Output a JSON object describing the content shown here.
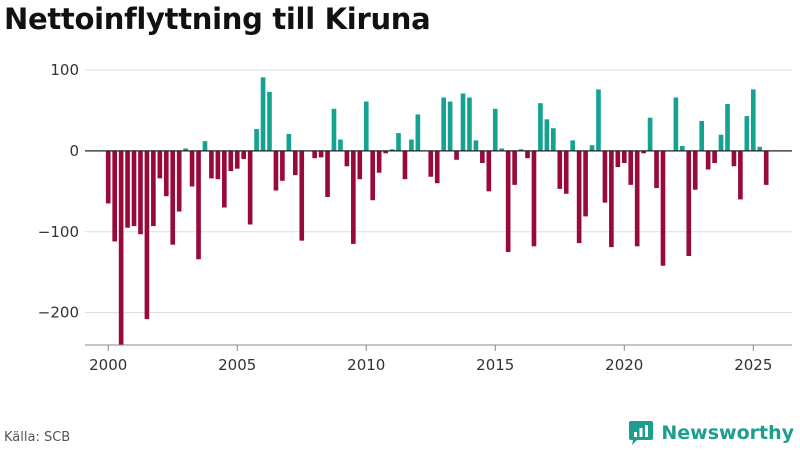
{
  "header": {
    "title": "Nettoinflyttning till Kiruna"
  },
  "footer": {
    "source": "Källa: SCB",
    "brand": "Newsworthy"
  },
  "colors": {
    "positive": "#14a393",
    "negative": "#990a3c",
    "grid": "#dddddd",
    "zero": "#222222",
    "brand": "#1e9e8e"
  },
  "chart_data": {
    "type": "bar",
    "title": "Nettoinflyttning till Kiruna",
    "xlabel": "",
    "ylabel": "",
    "frequency": "quarterly",
    "start": "2000-Q1",
    "ylim": [
      -240,
      100
    ],
    "xlim": [
      1999.1,
      2026.5
    ],
    "yticks": [
      100,
      0,
      -100,
      -200
    ],
    "ytick_labels": [
      "100",
      "0",
      "−100",
      "−200"
    ],
    "xticks": [
      2000,
      2005,
      2010,
      2015,
      2020,
      2025
    ],
    "xtick_labels": [
      "2000",
      "2005",
      "2010",
      "2015",
      "2020",
      "2025"
    ],
    "grid": true,
    "values": [
      -65,
      -112,
      -240,
      -95,
      -93,
      -103,
      -208,
      -93,
      -34,
      -56,
      -116,
      -75,
      3,
      -44,
      -134,
      12,
      -34,
      -35,
      -70,
      -25,
      -22,
      -10,
      -91,
      27,
      91,
      73,
      -49,
      -37,
      21,
      -30,
      -111,
      0,
      -9,
      -8,
      -57,
      52,
      14,
      -19,
      -115,
      -35,
      61,
      -61,
      -27,
      -3,
      2,
      22,
      -35,
      14,
      45,
      0,
      -32,
      -40,
      66,
      61,
      -11,
      71,
      66,
      13,
      -15,
      -50,
      52,
      3,
      -125,
      -42,
      2,
      -9,
      -118,
      59,
      39,
      28,
      -47,
      -53,
      13,
      -114,
      -81,
      7,
      76,
      -64,
      -119,
      -20,
      -15,
      -42,
      -118,
      -3,
      41,
      -46,
      -142,
      0,
      66,
      6,
      -130,
      -48,
      37,
      -23,
      -15,
      20,
      58,
      -19,
      -60,
      43,
      76,
      5,
      -42
    ]
  }
}
